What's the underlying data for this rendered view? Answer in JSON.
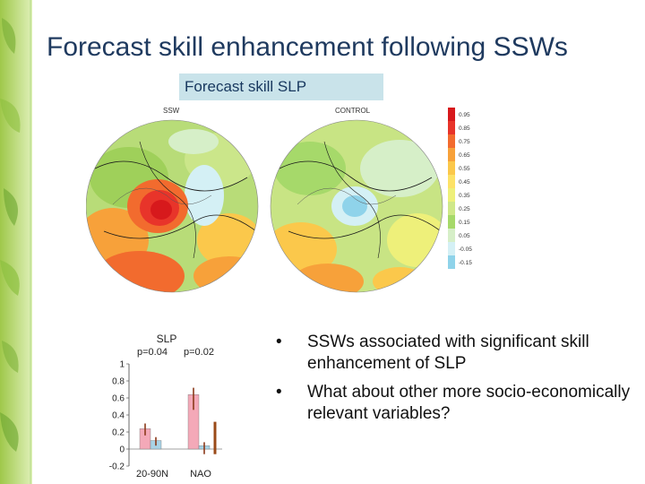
{
  "slide": {
    "title": "Forecast skill enhancement following SSWs",
    "subtitle": "Forecast skill SLP"
  },
  "maps": {
    "panels": [
      {
        "label": "SSW"
      },
      {
        "label": "CONTROL"
      }
    ],
    "colorbar": {
      "ticks": [
        "0.95",
        "0.85",
        "0.75",
        "0.65",
        "0.55",
        "0.45",
        "0.35",
        "0.25",
        "0.15",
        "0.05",
        "-0.05",
        "-0.15"
      ],
      "colors": [
        "#d7191c",
        "#e8342a",
        "#f26b2e",
        "#f7a13a",
        "#fbc84b",
        "#fde267",
        "#eef07a",
        "#cfe889",
        "#a6d96a",
        "#d6efc8",
        "#d4f0f5",
        "#8fd3ea"
      ]
    }
  },
  "bullets": [
    "SSWs associated with significant skill enhancement of SLP",
    "What about other more socio-economically relevant variables?"
  ],
  "chart_data": {
    "type": "bar",
    "title": "SLP",
    "categories": [
      "20-90N",
      "NAO"
    ],
    "annotations": [
      "p=0.04",
      "p=0.02"
    ],
    "ylim": [
      -0.2,
      1.0
    ],
    "yticks": [
      "1",
      "0.8",
      "0.6",
      "0.4",
      "0.2",
      "0",
      "-0.2"
    ],
    "series": [
      {
        "values": [
          0.24,
          0.64
        ],
        "color": "#f4a9b8",
        "err_low": [
          0.16,
          0.46
        ],
        "err_high": [
          0.3,
          0.72
        ],
        "err_color": "#8b3a1a"
      },
      {
        "values": [
          0.1,
          0.04
        ],
        "color": "#a9d3e6",
        "err_low": [
          0.04,
          -0.06
        ],
        "err_high": [
          0.14,
          0.08
        ],
        "err_color": "#8b3a1a"
      }
    ],
    "extra_bar": {
      "category": "NAO",
      "low": -0.06,
      "high": 0.32,
      "color": "#9a4a18"
    }
  }
}
